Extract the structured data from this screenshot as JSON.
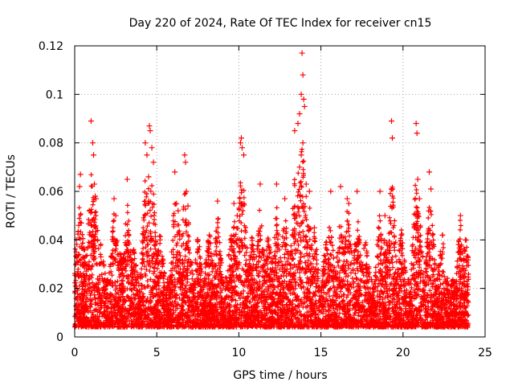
{
  "chart_data": {
    "type": "scatter",
    "title": "Day 220 of 2024, Rate Of TEC Index for receiver cn15",
    "xlabel": "GPS time / hours",
    "ylabel": "ROTI / TECUs",
    "xlim": [
      0,
      25
    ],
    "ylim": [
      0,
      0.12
    ],
    "x_ticks": [
      0,
      5,
      10,
      15,
      20,
      25
    ],
    "x_tick_labels": [
      "0",
      "5",
      "10",
      "15",
      "20",
      "25"
    ],
    "y_ticks": [
      0,
      0.02,
      0.04,
      0.06,
      0.08,
      0.1,
      0.12
    ],
    "y_tick_labels": [
      "0",
      "0.02",
      "0.04",
      "0.06",
      "0.08",
      "0.1",
      "0.12"
    ],
    "grid": true,
    "marker": "+",
    "marker_color": "#ff0000",
    "series": [
      {
        "name": "ROTI",
        "x": [
          0.25,
          0.3,
          0.35,
          0.4,
          1.0,
          1.1,
          1.15,
          1.2,
          1.25,
          1.3,
          2.4,
          2.5,
          3.2,
          4.3,
          4.4,
          4.5,
          4.55,
          4.6,
          4.7,
          4.8,
          4.5,
          6.1,
          6.2,
          6.3,
          6.7,
          6.75,
          6.8,
          6.9,
          8.7,
          9.7,
          9.9,
          10.1,
          10.2,
          10.3,
          10.15,
          11.3,
          12.3,
          12.8,
          13.4,
          13.6,
          13.7,
          13.8,
          13.85,
          13.9,
          13.95,
          14.0,
          13.9,
          13.8,
          13.7,
          14.1,
          14.3,
          15.6,
          16.2,
          16.6,
          16.7,
          17.2,
          18.6,
          18.9,
          19.3,
          19.35,
          20.8,
          20.85,
          20.9,
          21.0,
          21.6,
          21.7,
          23.5,
          0.1,
          0.6,
          1.6,
          2.8,
          3.6,
          5.2,
          7.5,
          8.2,
          9.5,
          10.8,
          11.8,
          12.4,
          14.6,
          15.3,
          17.7,
          19.9,
          22.4,
          23.8
        ],
        "y": [
          0.046,
          0.062,
          0.067,
          0.047,
          0.089,
          0.08,
          0.075,
          0.063,
          0.058,
          0.057,
          0.057,
          0.05,
          0.065,
          0.08,
          0.075,
          0.066,
          0.087,
          0.085,
          0.078,
          0.072,
          0.056,
          0.068,
          0.055,
          0.052,
          0.075,
          0.072,
          0.06,
          0.054,
          0.056,
          0.055,
          0.05,
          0.08,
          0.078,
          0.075,
          0.082,
          0.063,
          0.063,
          0.057,
          0.085,
          0.088,
          0.092,
          0.1,
          0.117,
          0.108,
          0.098,
          0.095,
          0.08,
          0.075,
          0.07,
          0.063,
          0.06,
          0.06,
          0.062,
          0.057,
          0.055,
          0.06,
          0.06,
          0.05,
          0.089,
          0.082,
          0.088,
          0.084,
          0.065,
          0.057,
          0.068,
          0.061,
          0.05,
          0.035,
          0.03,
          0.033,
          0.03,
          0.028,
          0.04,
          0.04,
          0.042,
          0.04,
          0.038,
          0.04,
          0.038,
          0.045,
          0.038,
          0.038,
          0.042,
          0.042,
          0.04
        ]
      }
    ]
  }
}
